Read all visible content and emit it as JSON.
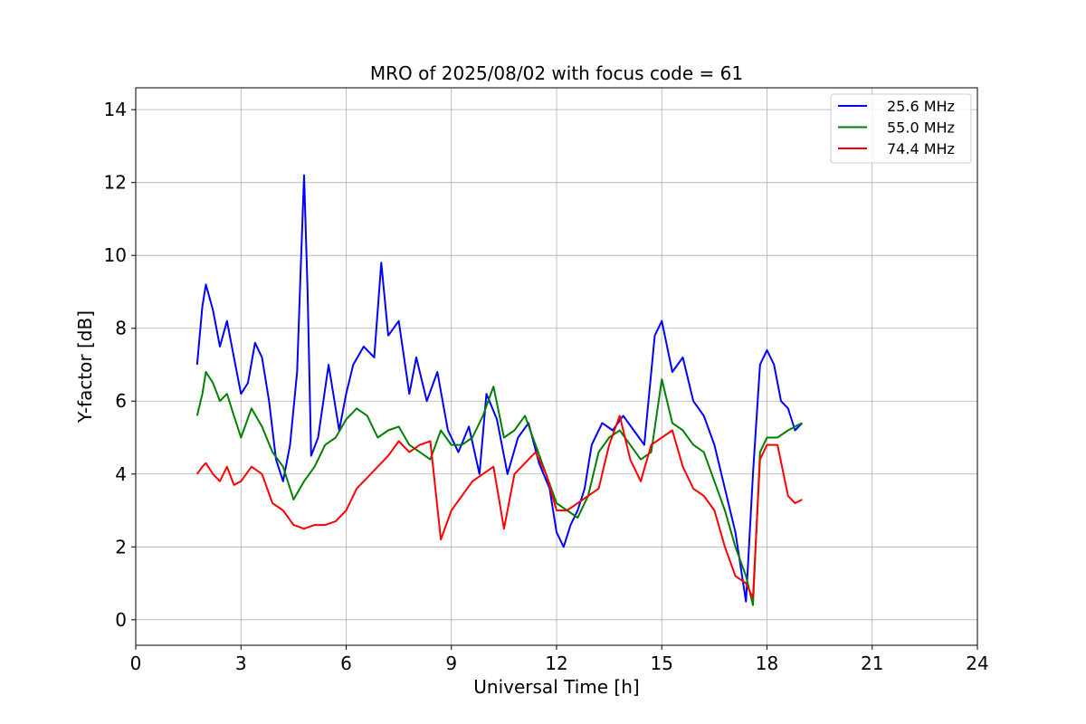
{
  "chart_data": {
    "type": "line",
    "title": "MRO of 2025/08/02 with focus code = 61",
    "xlabel": "Universal Time [h]",
    "ylabel": "Y-factor [dB]",
    "xlim": [
      0,
      24
    ],
    "ylim": [
      -0.7,
      14.6
    ],
    "xticks": [
      0,
      3,
      6,
      9,
      12,
      15,
      18,
      21,
      24
    ],
    "yticks": [
      0,
      2,
      4,
      6,
      8,
      10,
      12,
      14
    ],
    "grid": true,
    "legend_position": "top-right",
    "series": [
      {
        "name": "25.6 MHz",
        "color": "#0000ff",
        "x": [
          1.75,
          1.9,
          2.0,
          2.2,
          2.4,
          2.6,
          2.8,
          3.0,
          3.2,
          3.4,
          3.6,
          3.8,
          4.0,
          4.2,
          4.4,
          4.6,
          4.7,
          4.8,
          4.9,
          5.0,
          5.2,
          5.5,
          5.8,
          6.0,
          6.2,
          6.5,
          6.8,
          7.0,
          7.2,
          7.5,
          7.8,
          8.0,
          8.3,
          8.6,
          8.9,
          9.2,
          9.5,
          9.8,
          10.0,
          10.3,
          10.6,
          10.9,
          11.2,
          11.5,
          11.8,
          12.0,
          12.2,
          12.4,
          12.6,
          12.8,
          13.0,
          13.3,
          13.6,
          13.9,
          14.2,
          14.5,
          14.8,
          15.0,
          15.3,
          15.6,
          15.9,
          16.2,
          16.5,
          16.8,
          17.1,
          17.4,
          17.6,
          17.8,
          18.0,
          18.2,
          18.4,
          18.6,
          18.8,
          19.0
        ],
        "values": [
          7.0,
          8.6,
          9.2,
          8.5,
          7.5,
          8.2,
          7.2,
          6.2,
          6.5,
          7.6,
          7.2,
          6.0,
          4.4,
          3.8,
          4.8,
          6.8,
          9.5,
          12.2,
          9.0,
          4.5,
          5.0,
          7.0,
          5.2,
          6.2,
          7.0,
          7.5,
          7.2,
          9.8,
          7.8,
          8.2,
          6.2,
          7.2,
          6.0,
          6.8,
          5.2,
          4.6,
          5.3,
          4.0,
          6.2,
          5.5,
          4.0,
          5.0,
          5.4,
          4.3,
          3.6,
          2.4,
          2.0,
          2.6,
          3.0,
          3.6,
          4.8,
          5.4,
          5.2,
          5.6,
          5.2,
          4.8,
          7.8,
          8.2,
          6.8,
          7.2,
          6.0,
          5.6,
          4.8,
          3.6,
          2.4,
          0.5,
          4.0,
          7.0,
          7.4,
          7.0,
          6.0,
          5.8,
          5.2,
          5.4
        ]
      },
      {
        "name": "55.0 MHz",
        "color": "#008000",
        "x": [
          1.75,
          1.9,
          2.0,
          2.2,
          2.4,
          2.6,
          2.8,
          3.0,
          3.3,
          3.6,
          3.9,
          4.2,
          4.5,
          4.8,
          5.1,
          5.4,
          5.7,
          6.0,
          6.3,
          6.6,
          6.9,
          7.2,
          7.5,
          7.8,
          8.1,
          8.4,
          8.7,
          9.0,
          9.3,
          9.6,
          9.9,
          10.2,
          10.5,
          10.8,
          11.1,
          11.4,
          11.7,
          12.0,
          12.3,
          12.6,
          12.9,
          13.2,
          13.5,
          13.8,
          14.1,
          14.4,
          14.7,
          15.0,
          15.3,
          15.6,
          15.9,
          16.2,
          16.5,
          16.8,
          17.1,
          17.4,
          17.6,
          17.8,
          18.0,
          18.3,
          18.6,
          18.8,
          19.0
        ],
        "values": [
          5.6,
          6.2,
          6.8,
          6.5,
          6.0,
          6.2,
          5.6,
          5.0,
          5.8,
          5.3,
          4.6,
          4.2,
          3.3,
          3.8,
          4.2,
          4.8,
          5.0,
          5.5,
          5.8,
          5.6,
          5.0,
          5.2,
          5.3,
          4.8,
          4.6,
          4.4,
          5.2,
          4.8,
          4.8,
          5.0,
          5.6,
          6.4,
          5.0,
          5.2,
          5.6,
          4.8,
          4.0,
          3.2,
          3.0,
          2.8,
          3.4,
          4.6,
          5.0,
          5.2,
          4.8,
          4.4,
          4.6,
          6.6,
          5.4,
          5.2,
          4.8,
          4.6,
          3.8,
          3.0,
          2.0,
          1.2,
          0.4,
          4.6,
          5.0,
          5.0,
          5.2,
          5.3,
          5.4
        ]
      },
      {
        "name": "74.4 MHz",
        "color": "#ff0000",
        "x": [
          1.75,
          1.9,
          2.0,
          2.2,
          2.4,
          2.6,
          2.8,
          3.0,
          3.3,
          3.6,
          3.9,
          4.2,
          4.5,
          4.8,
          5.1,
          5.4,
          5.7,
          6.0,
          6.3,
          6.6,
          6.9,
          7.2,
          7.5,
          7.8,
          8.1,
          8.4,
          8.7,
          9.0,
          9.3,
          9.6,
          9.9,
          10.2,
          10.5,
          10.8,
          11.1,
          11.4,
          11.7,
          12.0,
          12.3,
          12.6,
          12.9,
          13.2,
          13.5,
          13.8,
          14.1,
          14.4,
          14.7,
          15.0,
          15.3,
          15.6,
          15.9,
          16.2,
          16.5,
          16.8,
          17.1,
          17.4,
          17.6,
          17.8,
          18.0,
          18.3,
          18.6,
          18.8,
          19.0
        ],
        "values": [
          4.0,
          4.2,
          4.3,
          4.0,
          3.8,
          4.2,
          3.7,
          3.8,
          4.2,
          4.0,
          3.2,
          3.0,
          2.6,
          2.5,
          2.6,
          2.6,
          2.7,
          3.0,
          3.6,
          3.9,
          4.2,
          4.5,
          4.9,
          4.6,
          4.8,
          4.9,
          2.2,
          3.0,
          3.4,
          3.8,
          4.0,
          4.2,
          2.5,
          4.0,
          4.3,
          4.6,
          4.0,
          3.0,
          3.0,
          3.2,
          3.4,
          3.6,
          4.8,
          5.6,
          4.4,
          3.8,
          4.8,
          5.0,
          5.2,
          4.2,
          3.6,
          3.4,
          3.0,
          2.0,
          1.2,
          1.0,
          0.6,
          4.4,
          4.8,
          4.8,
          3.4,
          3.2,
          3.3
        ]
      }
    ]
  }
}
